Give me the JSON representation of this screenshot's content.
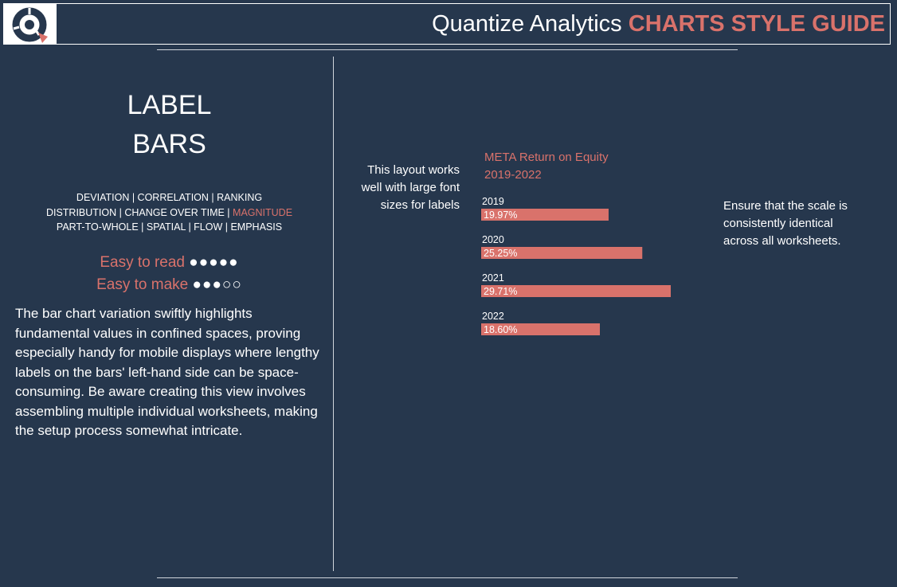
{
  "header": {
    "title_main": "Quantize Analytics ",
    "title_accent": "CHARTS STYLE GUIDE",
    "logo": "quantize-logo-icon"
  },
  "left": {
    "title_line1": "LABEL",
    "title_line2": "BARS",
    "categories": {
      "line1": "DEVIATION | CORRELATION | RANKING",
      "line2_pre": "DISTRIBUTION | CHANGE OVER TIME | ",
      "line2_highlight": "MAGNITUDE",
      "line3": "PART-TO-WHOLE | SPATIAL | FLOW | EMPHASIS"
    },
    "easy_read_label": "Easy to read",
    "easy_read_dots": "●●●●●",
    "easy_make_label": "Easy to make",
    "easy_make_dots": "●●●○○",
    "description": "The bar chart variation swiftly highlights fundamental values in confined spaces, proving especially handy for mobile displays where lengthy labels on the bars' left-hand side can be space-consuming. Be aware creating this view involves assembling multiple individual worksheets, making the setup process somewhat intricate."
  },
  "right": {
    "note_left": "This layout works well with large font sizes for labels",
    "note_right": "Ensure that the scale is consistently identical across all worksheets."
  },
  "colors": {
    "background": "#26374d",
    "accent": "#d9726b",
    "text": "#ffffff"
  },
  "chart_data": {
    "type": "bar",
    "orientation": "horizontal",
    "title_line1": "META Return on Equity",
    "title_line2": "2019-2022",
    "categories": [
      "2019",
      "2020",
      "2021",
      "2022"
    ],
    "values": [
      19.97,
      25.25,
      29.71,
      18.6
    ],
    "value_labels": [
      "19.97%",
      "25.25%",
      "29.71%",
      "18.60%"
    ],
    "xlim": [
      0,
      29.71
    ],
    "grid": false,
    "legend": "none",
    "bar_color": "#d9726b"
  }
}
